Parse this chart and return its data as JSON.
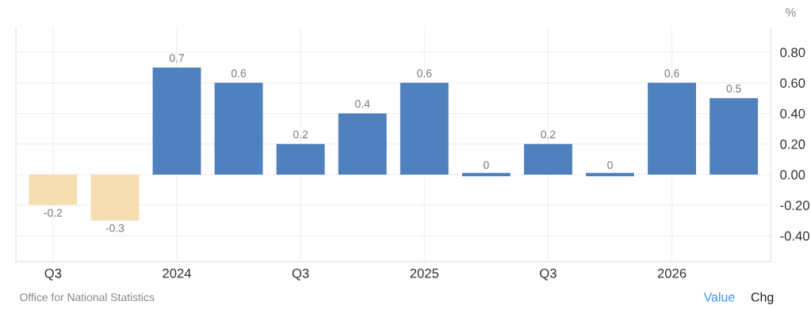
{
  "chart_data": {
    "type": "bar",
    "ylabel": "%",
    "categories": [
      "Q3",
      null,
      "2024",
      null,
      "Q3",
      null,
      "2025",
      null,
      "Q3",
      null,
      "2026",
      null
    ],
    "values": [
      -0.2,
      -0.3,
      0.7,
      0.6,
      0.2,
      0.4,
      0.6,
      0,
      0.2,
      0,
      0.6,
      0.5
    ],
    "colors": [
      "#f5deb3",
      "#f5deb3",
      "#4e81bd",
      "#4e81bd",
      "#4e81bd",
      "#4e81bd",
      "#4e81bd",
      "#4e81bd",
      "#4e81bd",
      "#4e81bd",
      "#4e81bd",
      "#4e81bd"
    ],
    "ylim": [
      -0.57,
      0.96
    ],
    "yticks": [
      {
        "value": -0.4,
        "label": "-0.40"
      },
      {
        "value": -0.2,
        "label": "-0.20"
      },
      {
        "value": 0,
        "label": "0.00"
      },
      {
        "value": 0.2,
        "label": "0.20"
      },
      {
        "value": 0.4,
        "label": "0.40"
      },
      {
        "value": 0.6,
        "label": "0.60"
      },
      {
        "value": 0.8,
        "label": "0.80"
      }
    ],
    "grid": true,
    "data_labels": true,
    "annotations": [
      "Office for National Statistics",
      "Value",
      "Chg"
    ]
  }
}
